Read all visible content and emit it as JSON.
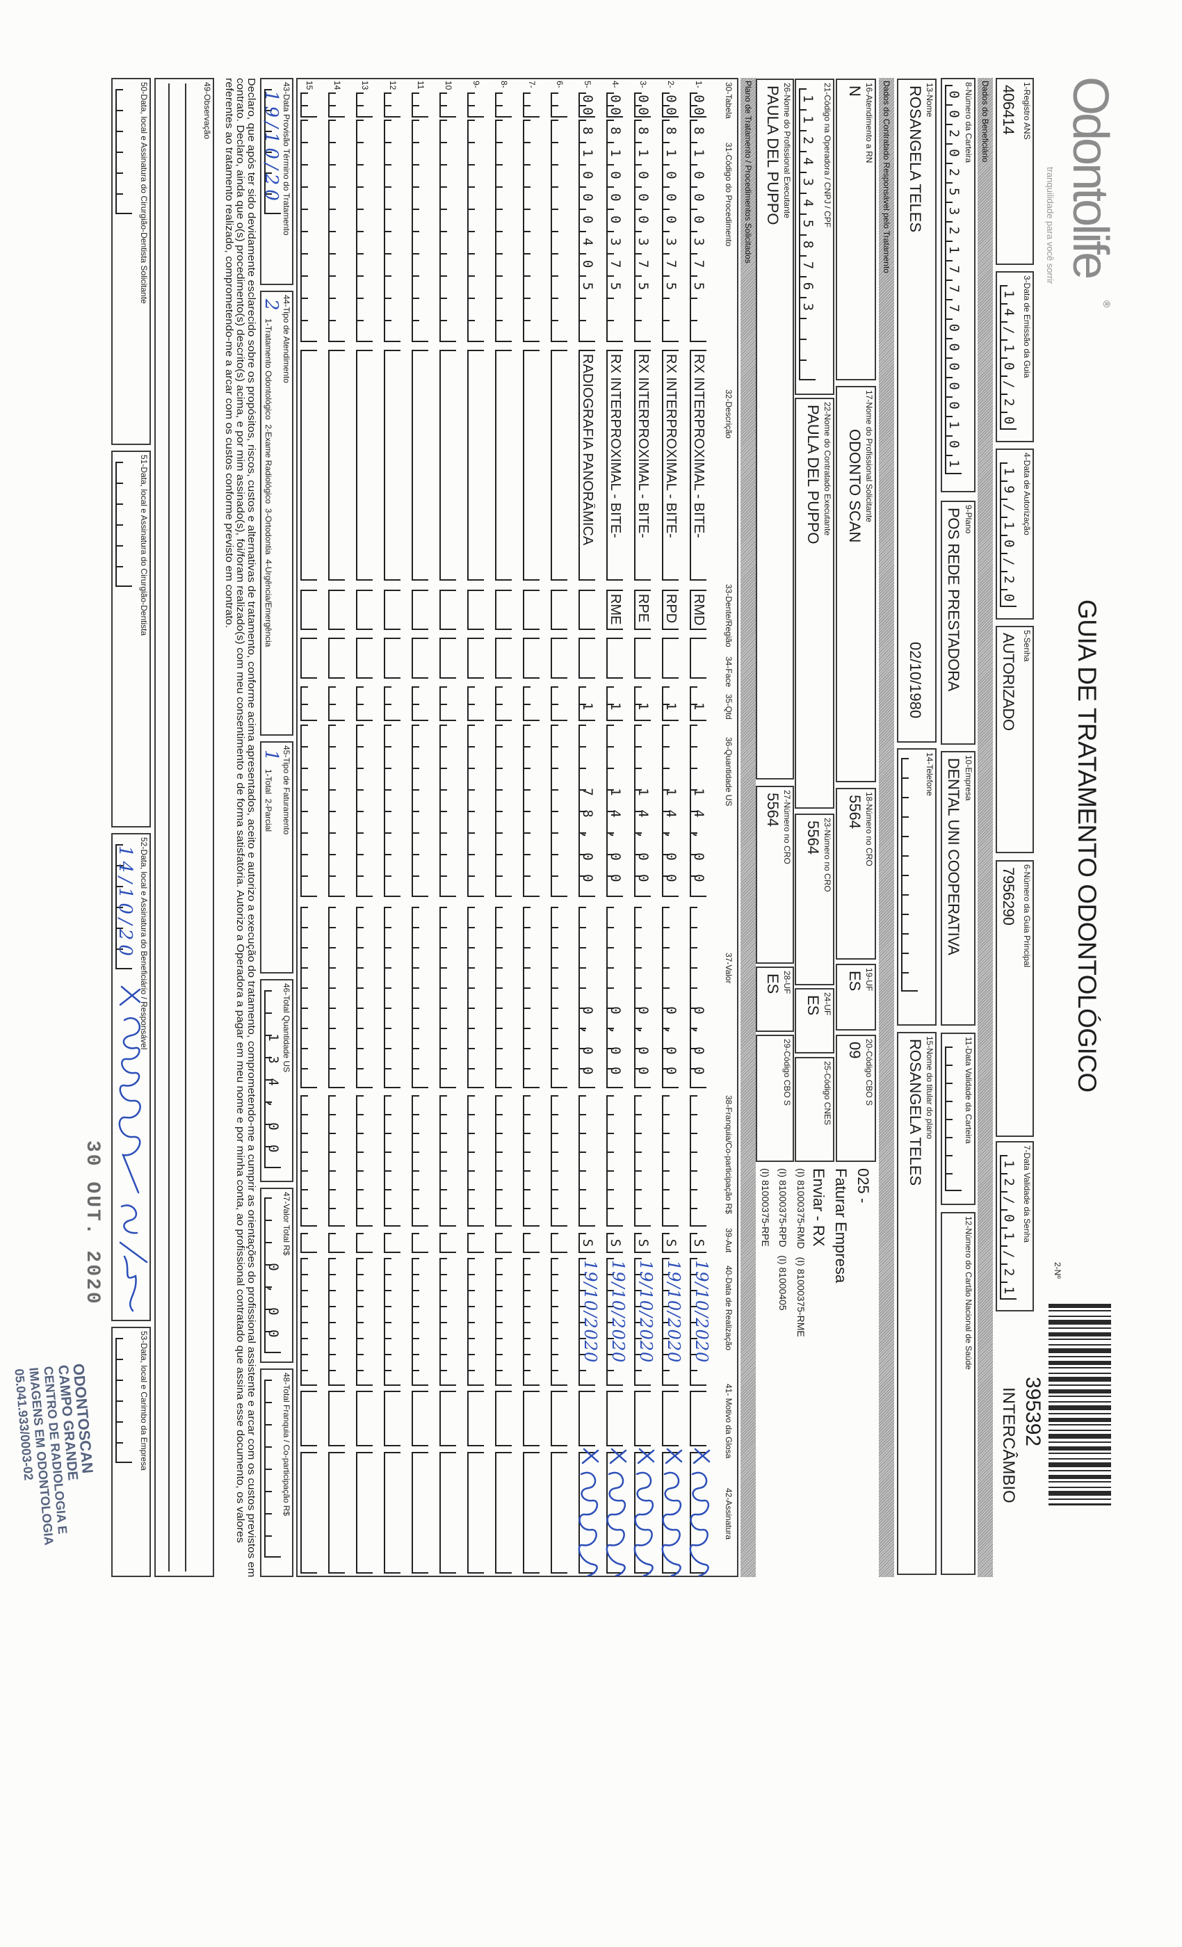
{
  "colors": {
    "handwriting": "#2c4fb8",
    "banner": "#a8a8a8",
    "logo": "#8c8c8c",
    "stamp": "#55627e"
  },
  "header": {
    "logo": {
      "text": "Odontolife",
      "registered": "®",
      "tagline": "tranquilidade para você sorrir"
    },
    "title": "GUIA DE TRATAMENTO ODONTOLÓGICO",
    "numero_label": "2-Nº",
    "guia_numero": "395392",
    "guia_tipo": "INTERCÂMBIO"
  },
  "guia": {
    "registro_ans": {
      "label": "1-Registro ANS",
      "value": "406414"
    },
    "data_emissao": {
      "label": "3-Data de Emissão da Guia",
      "value": "14/10/20"
    },
    "data_autorizacao": {
      "label": "4-Data de Autorização",
      "value": "19/10/20"
    },
    "senha": {
      "label": "5-Senha",
      "value": "AUTORIZADO"
    },
    "guia_principal": {
      "label": "6-Número da Guia Principal",
      "value": "7956290"
    },
    "validade_senha": {
      "label": "7-Data Validade da Senha",
      "value": "12/01/21"
    }
  },
  "beneficiario": {
    "section": "Dados do Beneficiário",
    "carteira": {
      "label": "8-Número da Carteira",
      "value": "00202532177700000101"
    },
    "plano": {
      "label": "9-Plano",
      "value": "POS REDE PRESTADORA"
    },
    "empresa": {
      "label": "10-Empresa",
      "value": "DENTAL UNI COOPERATIVA"
    },
    "validade_carteira": {
      "label": "11-Data Validade da Carteira",
      "value": ""
    },
    "cartao_nacional": {
      "label": "12-Número do Cartão Nacional de Saúde",
      "value": ""
    },
    "nome": {
      "label": "13-Nome",
      "value": "ROSANGELA TELES"
    },
    "data_nascimento": "02/10/1980",
    "telefone": {
      "label": "14-Telefone",
      "value": ""
    },
    "titular": {
      "label": "15-Nome do titular do plano",
      "value": "ROSANGELA TELES"
    }
  },
  "contratado": {
    "section": "Dados do Contratado Responsável pelo Tratamento",
    "atendimento_rn": {
      "label": "16-Atendimento a RN",
      "value": "N"
    },
    "profissional_solicitante": {
      "label": "17-Nome do Profissional Solicitante",
      "value": "ODONTO SCAN"
    },
    "cro_solicitante": {
      "label": "18-Número no CRO",
      "value": "5564"
    },
    "uf_solicitante": {
      "label": "19-UF",
      "value": "ES"
    },
    "cbo_solicitante": {
      "label": "20-Código CBO S",
      "value": "09"
    },
    "codigo_operadora": {
      "label": "21-Código na Operadora / CNPJ / CPF",
      "value": "11243458763"
    },
    "contratado_executante": {
      "label": "22-Nome do Contratado Executante",
      "value": "PAULA DEL PUPPO"
    },
    "cro_contratado": {
      "label": "23-Número no CRO",
      "value": "5564"
    },
    "uf_contratado": {
      "label": "24-UF",
      "value": "ES"
    },
    "cnes": {
      "label": "25-Código CNES",
      "value": ""
    },
    "profissional_executante": {
      "label": "26-Nome do Profissional Executante",
      "value": "PAULA DEL PUPPO"
    },
    "cro_executante": {
      "label": "27-Número no CRO",
      "value": "5564"
    },
    "uf_executante": {
      "label": "28-UF",
      "value": "ES"
    },
    "cbo_executante": {
      "label": "29-Código CBO S",
      "value": ""
    },
    "notas": [
      "025 -",
      "Faturar Empresa",
      "Enviar - RX",
      "(I) 81000375-RMD   (I) 81000375-RME",
      "(I) 81000375-RPD   (I) 81000405",
      "(I) 81000375-RPE"
    ]
  },
  "procedimentos": {
    "section": "Plano de Tratamento / Procedimentos Solicitados",
    "headers": {
      "tabela": "30-Tabela",
      "codigo": "31-Código do Procedimento",
      "descricao": "32-Descrição",
      "dente": "33-Dente/Região",
      "face": "34-Face",
      "qtd": "35-Qtd",
      "qtd_us": "36-Quantidade US",
      "valor": "37-Valor",
      "franquia": "38-Franquia/Co-participação R$",
      "aut": "39-Aut",
      "data_realizacao": "40-Data de Realização",
      "glosa": "41- Motivo da Glosa",
      "assinatura": "42-Assinatura"
    },
    "rows": [
      {
        "numero": "1-",
        "tabela": "00",
        "codigo": "81000375",
        "descricao": "RX INTERPROXIMAL - BITE-",
        "dente": "RMD",
        "face": "",
        "qtd": "1",
        "qtd_us": "14,00",
        "valor": "0,00",
        "franquia": "",
        "aut": "S",
        "data_realizacao": "19/10/2020",
        "glosa": "",
        "signed": true
      },
      {
        "numero": "2-",
        "tabela": "00",
        "codigo": "81000375",
        "descricao": "RX INTERPROXIMAL - BITE-",
        "dente": "RPD",
        "face": "",
        "qtd": "1",
        "qtd_us": "14,00",
        "valor": "0,00",
        "franquia": "",
        "aut": "S",
        "data_realizacao": "19/10/2020",
        "glosa": "",
        "signed": true
      },
      {
        "numero": "3-",
        "tabela": "00",
        "codigo": "81000375",
        "descricao": "RX INTERPROXIMAL - BITE-",
        "dente": "RPE",
        "face": "",
        "qtd": "1",
        "qtd_us": "14,00",
        "valor": "0,00",
        "franquia": "",
        "aut": "S",
        "data_realizacao": "19/10/2020",
        "glosa": "",
        "signed": true
      },
      {
        "numero": "4-",
        "tabela": "00",
        "codigo": "81000375",
        "descricao": "RX INTERPROXIMAL - BITE-",
        "dente": "RME",
        "face": "",
        "qtd": "1",
        "qtd_us": "14,00",
        "valor": "0,00",
        "franquia": "",
        "aut": "S",
        "data_realizacao": "19/10/2020",
        "glosa": "",
        "signed": true
      },
      {
        "numero": "5-",
        "tabela": "00",
        "codigo": "81000405",
        "descricao": "RADIOGRAFIA PANORÂMICA",
        "dente": "",
        "face": "",
        "qtd": "1",
        "qtd_us": "78,00",
        "valor": "0,00",
        "franquia": "",
        "aut": "S",
        "data_realizacao": "19/10/2020",
        "glosa": "",
        "signed": true
      },
      {
        "numero": "6-"
      },
      {
        "numero": "7-"
      },
      {
        "numero": "8-"
      },
      {
        "numero": "9-"
      },
      {
        "numero": "10"
      },
      {
        "numero": "11"
      },
      {
        "numero": "12"
      },
      {
        "numero": "13"
      },
      {
        "numero": "14"
      },
      {
        "numero": "15"
      }
    ]
  },
  "totais": {
    "previsao_termino": {
      "label": "43-Data Provisão Término do Tratamento",
      "value": "19/10/20"
    },
    "tipo_atendimento": {
      "label": "44-Tipo de Atendimento",
      "value": "2",
      "options": "1-Tratamento Odontológico  2-Exame Radiológico  3-Ortodontia  4-Urgência/Emergência"
    },
    "tipo_faturamento": {
      "label": "45-Tipo de Faturamento",
      "value": "1",
      "options": "1-Total  2-Parcial"
    },
    "total_us": {
      "label": "46-Total Quantidade US",
      "value": "134,00"
    },
    "valor_total": {
      "label": "47-Valor Total R$",
      "value": "0,00"
    },
    "total_franquia": {
      "label": "48-Total Franquia / Co-participação R$",
      "value": ""
    }
  },
  "declaracao": [
    "Declaro, que após ter sido devidamente esclarecido sobre os propósitos, riscos, custos e alternativas de tratamento, conforme acima apresentados, aceito e autorizo a execução do tratamento, comprometendo-me a cumprir as orientações do profissional assistente e arcar com os custos previstos em",
    "contrato. Declaro, ainda que o(s) procedimento(s) descrito(s) acima, e por mim assinado(s), foi/foram realizado(s) com meu consentimento e de forma satisfatória. Autorizo a Operadora a pagar em meu nome e por minha conta, ao profissional contratado que assina esse documento, os valores",
    "referentes ao tratamento realizado, comprometendo-me a arcar com os custos conforme previsto em contrato."
  ],
  "observacao": {
    "label": "49-Observação",
    "value": ""
  },
  "assinaturas": {
    "solicitante": {
      "label": "50-Data, local e Assinatura do Cirurgião-Dentista Solicitante",
      "value": ""
    },
    "dentista": {
      "label": "51-Data, local e Assinatura do Cirurgião-Dentista",
      "value": ""
    },
    "beneficiario": {
      "label": "52-Data, local e Assinatura do Beneficiário / Responsável",
      "value": "14/10/20"
    },
    "empresa": {
      "label": "53-Data, local e Carimbo da Empresa",
      "value": ""
    }
  },
  "carimbos": {
    "data": "30 OUT. 2020",
    "empresa": [
      "ODONTOSCAN",
      "CAMPO GRANDE",
      "CENTRO DE RADIOLOGIA E",
      "IMAGENS EM ODONTOLOGIA",
      "05.041.933/0003-02"
    ]
  }
}
